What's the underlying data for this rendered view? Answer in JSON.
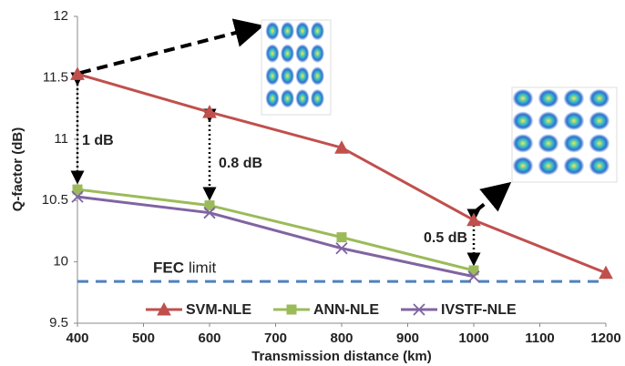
{
  "chart_data": {
    "type": "line",
    "y_label": "Q-factor (dB)",
    "x_label": "Transmission distance (km)",
    "x": [
      400,
      600,
      800,
      1000,
      1200
    ],
    "xlim": [
      400,
      1200
    ],
    "xticks": [
      400,
      500,
      600,
      700,
      800,
      900,
      1000,
      1100,
      1200
    ],
    "ylim": [
      9.5,
      12
    ],
    "yticks": [
      9.5,
      10,
      10.5,
      11,
      11.5,
      12
    ],
    "grid": false,
    "legend": "bottom",
    "series": [
      {
        "name": "SVM-NLE",
        "color": "#c0504d",
        "marker": "triangle",
        "values": [
          11.53,
          11.22,
          10.93,
          10.34,
          9.91
        ]
      },
      {
        "name": "ANN-NLE",
        "color": "#9bbb59",
        "marker": "square",
        "values": [
          10.59,
          10.46,
          10.2,
          9.93,
          null
        ]
      },
      {
        "name": "IVSTF-NLE",
        "color": "#8064a2",
        "marker": "x",
        "values": [
          10.53,
          10.4,
          10.11,
          9.88,
          null
        ]
      }
    ],
    "fec_limit": {
      "value": 9.84,
      "color": "#4f81bd",
      "label_bold": "FEC",
      "label": "limit"
    },
    "annotations": [
      "1 dB",
      "0.8 dB",
      "0.5 dB"
    ]
  }
}
